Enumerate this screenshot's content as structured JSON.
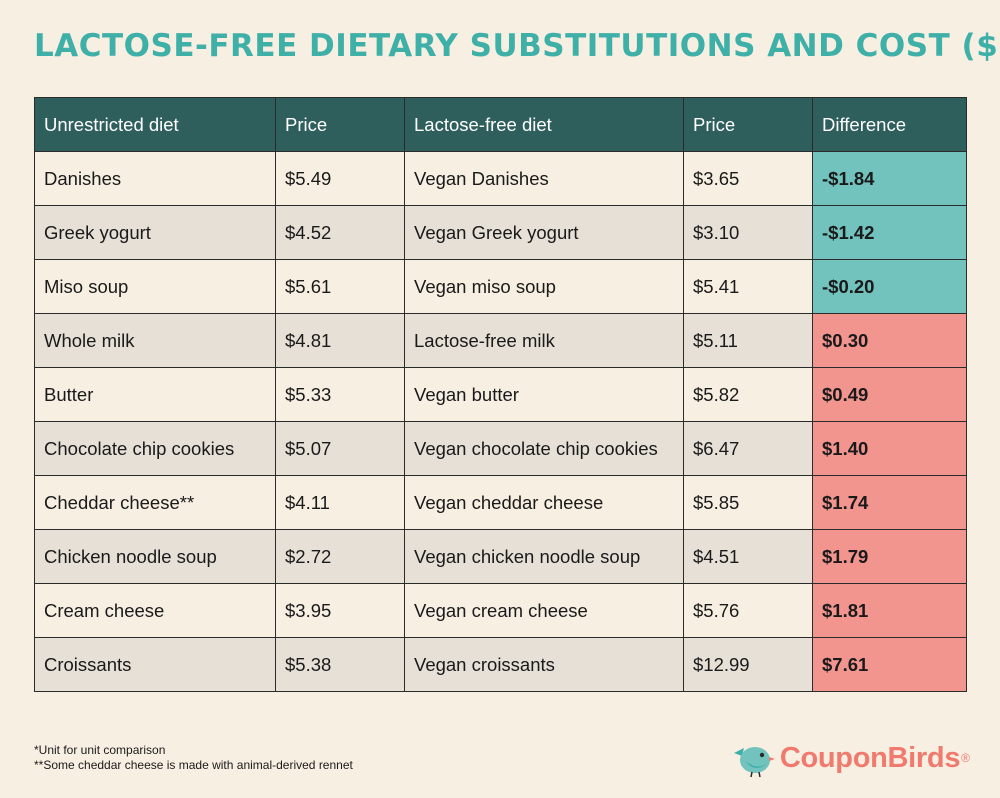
{
  "title": "LACTOSE-FREE DIETARY SUBSTITUTIONS AND COST ($)*",
  "columns": [
    "Unrestricted diet",
    "Price",
    "Lactose-free diet",
    "Price",
    "Difference"
  ],
  "rows": [
    [
      "Danishes",
      "$5.49",
      "Vegan Danishes",
      "$3.65",
      "-$1.84"
    ],
    [
      "Greek yogurt",
      "$4.52",
      "Vegan Greek yogurt",
      "$3.10",
      "-$1.42"
    ],
    [
      "Miso soup",
      "$5.61",
      "Vegan miso soup",
      "$5.41",
      "-$0.20"
    ],
    [
      "Whole milk",
      "$4.81",
      "Lactose-free milk",
      "$5.11",
      "$0.30"
    ],
    [
      "Butter",
      "$5.33",
      "Vegan butter",
      "$5.82",
      "$0.49"
    ],
    [
      "Chocolate chip cookies",
      "$5.07",
      "Vegan chocolate chip cookies",
      "$6.47",
      "$1.40"
    ],
    [
      "Cheddar cheese**",
      "$4.11",
      "Vegan cheddar cheese",
      "$5.85",
      "$1.74"
    ],
    [
      "Chicken noodle soup",
      "$2.72",
      "Vegan chicken noodle soup",
      "$4.51",
      "$1.79"
    ],
    [
      "Cream cheese",
      "$3.95",
      "Vegan cream cheese",
      "$5.76",
      "$1.81"
    ],
    [
      "Croissants",
      "$5.38",
      "Vegan croissants",
      "$12.99",
      "$7.61"
    ]
  ],
  "footnotes": [
    "*Unit for unit comparison",
    "**Some cheddar cheese is made with animal-derived rennet"
  ],
  "brand": {
    "name": "CouponBirds",
    "reg": "®",
    "icon": "bird-logo-icon"
  },
  "colors": {
    "title": "#3fb0a8",
    "header_bg": "#2f5f5c",
    "negative_diff": "#72c3bd",
    "positive_diff": "#f3958f",
    "brand": "#f07a6e"
  }
}
